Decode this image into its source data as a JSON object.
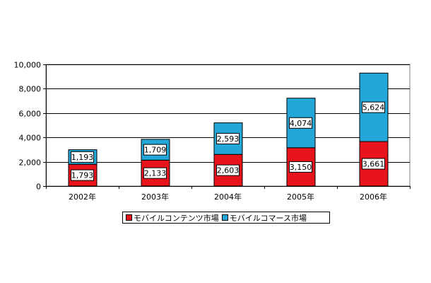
{
  "colors": {
    "mobile_contents": "#e8141c",
    "mobile_commerce": "#22a7d8",
    "gridline": "#000000",
    "plot_bg": "#ffffff"
  },
  "chart_data": {
    "type": "bar",
    "stacked": true,
    "title": "",
    "xlabel": "",
    "ylabel": "",
    "categories": [
      "2002年",
      "2003年",
      "2004年",
      "2005年",
      "2006年"
    ],
    "series": [
      {
        "name": "モバイルコンテンツ市場",
        "values": [
          1793,
          2133,
          2603,
          3150,
          3661
        ],
        "value_labels": [
          "1,793",
          "2,133",
          "2,603",
          "3,150",
          "3,661"
        ]
      },
      {
        "name": "モバイルコマース市場",
        "values": [
          1193,
          1709,
          2593,
          4074,
          5624
        ],
        "value_labels": [
          "1,193",
          "1,709",
          "2,593",
          "4,074",
          "5,624"
        ]
      }
    ],
    "ylim": [
      0,
      10000
    ],
    "yticks": [
      0,
      2000,
      4000,
      6000,
      8000,
      10000
    ],
    "ytick_labels": [
      "0",
      "2,000",
      "4,000",
      "6,000",
      "8,000",
      "10,000"
    ],
    "grid": true,
    "legend_position": "bottom"
  }
}
